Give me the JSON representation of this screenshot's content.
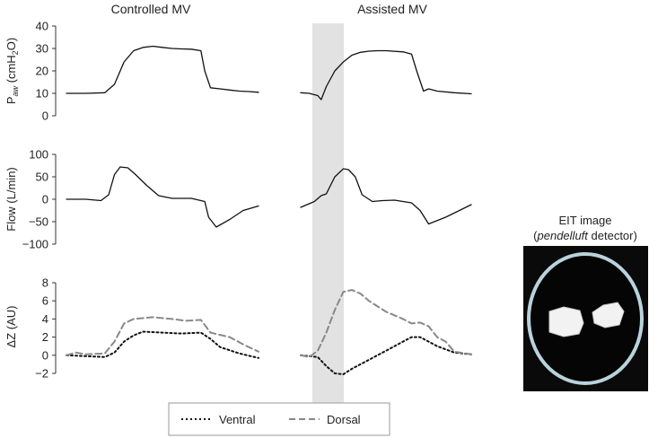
{
  "chart_data": [
    {
      "type": "line",
      "panel": "pressure",
      "ylabel_main": "P",
      "ylabel_sub": "aw",
      "ylabel_unit_pre": " (cmH",
      "ylabel_unit_sub": "2",
      "ylabel_unit_post": "O)",
      "ylim": [
        0,
        40
      ],
      "yticks": [
        0,
        10,
        20,
        30,
        40
      ],
      "series": [
        {
          "column": "Controlled MV",
          "x": [
            0,
            0.1,
            0.2,
            0.25,
            0.3,
            0.35,
            0.4,
            0.45,
            0.5,
            0.55,
            0.6,
            0.65,
            0.7,
            0.72,
            0.75,
            0.8,
            0.85,
            0.9,
            0.95,
            1.0
          ],
          "y": [
            10,
            10,
            10.3,
            14,
            24,
            29,
            30.5,
            31,
            30.5,
            30,
            29.8,
            29.7,
            29,
            20,
            12.5,
            12,
            11.5,
            11,
            10.8,
            10.5
          ]
        },
        {
          "column": "Assisted MV",
          "x": [
            0,
            0.05,
            0.1,
            0.12,
            0.15,
            0.2,
            0.25,
            0.3,
            0.35,
            0.4,
            0.45,
            0.5,
            0.6,
            0.65,
            0.68,
            0.72,
            0.75,
            0.8,
            0.9,
            1.0
          ],
          "y": [
            10.3,
            10,
            9,
            7.2,
            13,
            20,
            24,
            27,
            28.3,
            28.8,
            29,
            29,
            28.5,
            27.5,
            20,
            11,
            12,
            11,
            10.3,
            9.8
          ]
        }
      ]
    },
    {
      "type": "line",
      "panel": "flow",
      "ylabel": "Flow (L/min)",
      "ylim": [
        -100,
        100
      ],
      "yticks": [
        -100,
        -50,
        0,
        50,
        100
      ],
      "series": [
        {
          "column": "Controlled MV",
          "x": [
            0,
            0.1,
            0.18,
            0.22,
            0.25,
            0.28,
            0.32,
            0.36,
            0.42,
            0.48,
            0.55,
            0.65,
            0.72,
            0.74,
            0.78,
            0.85,
            0.92,
            1.0
          ],
          "y": [
            0,
            0,
            -3,
            10,
            55,
            72,
            70,
            55,
            30,
            8,
            2,
            2,
            -5,
            -40,
            -62,
            -45,
            -25,
            -15
          ]
        },
        {
          "column": "Assisted MV",
          "x": [
            0,
            0.08,
            0.12,
            0.15,
            0.2,
            0.25,
            0.28,
            0.32,
            0.36,
            0.42,
            0.48,
            0.55,
            0.65,
            0.7,
            0.75,
            0.85,
            1.0
          ],
          "y": [
            -18,
            -5,
            8,
            12,
            50,
            68,
            66,
            50,
            10,
            -5,
            -3,
            -2,
            -8,
            -25,
            -55,
            -40,
            -12
          ]
        }
      ]
    },
    {
      "type": "line",
      "panel": "impedance",
      "ylabel": "ΔZ (AU)",
      "ylim": [
        -2,
        8
      ],
      "yticks": [
        -2,
        0,
        2,
        4,
        6,
        8
      ],
      "series": [
        {
          "name": "Ventral",
          "column": "Controlled MV",
          "style": "dotted",
          "x": [
            0,
            0.1,
            0.2,
            0.25,
            0.3,
            0.35,
            0.4,
            0.5,
            0.6,
            0.7,
            0.75,
            0.8,
            0.9,
            1.0
          ],
          "y": [
            0,
            -0.1,
            -0.2,
            0.3,
            1.5,
            2.2,
            2.6,
            2.5,
            2.4,
            2.5,
            1.8,
            0.9,
            0.2,
            -0.3
          ]
        },
        {
          "name": "Dorsal",
          "column": "Controlled MV",
          "style": "dashed",
          "x": [
            0,
            0.05,
            0.1,
            0.2,
            0.25,
            0.3,
            0.35,
            0.45,
            0.55,
            0.62,
            0.7,
            0.75,
            0.85,
            0.92,
            1.0
          ],
          "y": [
            0,
            0.3,
            0.1,
            0.2,
            1.5,
            3.5,
            4.0,
            4.2,
            4.0,
            3.8,
            3.9,
            2.5,
            2.0,
            1.2,
            0.4
          ]
        },
        {
          "name": "Ventral",
          "column": "Assisted MV",
          "style": "dotted",
          "x": [
            0,
            0.05,
            0.1,
            0.15,
            0.2,
            0.25,
            0.3,
            0.4,
            0.5,
            0.6,
            0.65,
            0.7,
            0.75,
            0.8,
            0.9,
            1.0
          ],
          "y": [
            0,
            -0.1,
            -0.2,
            -1.2,
            -2.0,
            -2.1,
            -1.5,
            -0.5,
            0.5,
            1.5,
            2.0,
            2.0,
            1.5,
            1.0,
            0.3,
            0.1
          ]
        },
        {
          "name": "Dorsal",
          "column": "Assisted MV",
          "style": "dashed",
          "x": [
            0,
            0.05,
            0.1,
            0.15,
            0.2,
            0.25,
            0.3,
            0.35,
            0.4,
            0.5,
            0.6,
            0.65,
            0.7,
            0.75,
            0.8,
            0.85,
            0.9,
            1.0
          ],
          "y": [
            0,
            -0.2,
            0.5,
            2.5,
            5.0,
            7.0,
            7.2,
            6.8,
            6.0,
            4.8,
            4.0,
            3.5,
            3.6,
            3.2,
            2.0,
            1.5,
            0.4,
            0.1
          ]
        }
      ]
    }
  ],
  "columns": [
    "Controlled MV",
    "Assisted MV"
  ],
  "legend": {
    "items": [
      {
        "name": "Ventral",
        "style": "dotted"
      },
      {
        "name": "Dorsal",
        "style": "dashed"
      }
    ],
    "position": "bottom-center"
  },
  "eit": {
    "title_line1": "EIT image",
    "title_open": "(",
    "title_italic": "pendelluft",
    "title_rest": " detector)"
  },
  "colors": {
    "ventral": "#111111",
    "dorsal": "#888888",
    "line": "#111111",
    "shade": "#e2e2e2",
    "axis": "#333333"
  }
}
